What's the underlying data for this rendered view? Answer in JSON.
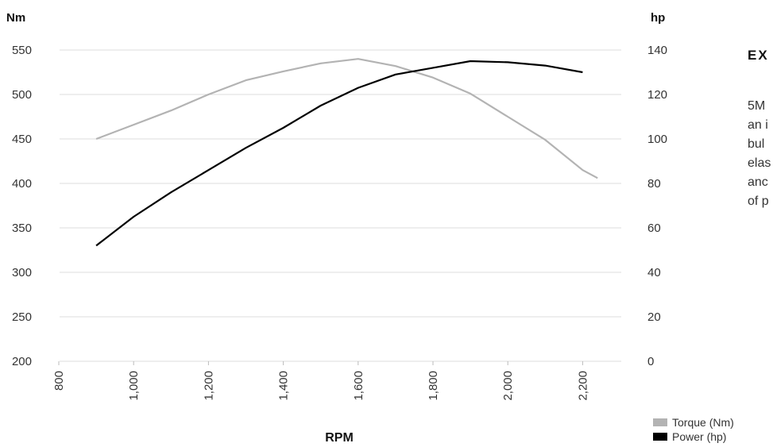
{
  "chart_data": {
    "type": "line",
    "xlabel": "RPM",
    "x_ticks": [
      "800",
      "1,000",
      "1,200",
      "1,400",
      "1,600",
      "1,800",
      "2,000",
      "2,200"
    ],
    "xlim": [
      800,
      2250
    ],
    "y_left": {
      "unit": "Nm",
      "ylim": [
        200,
        550
      ],
      "ticks": [
        "200",
        "250",
        "300",
        "350",
        "400",
        "450",
        "500",
        "550"
      ]
    },
    "y_right": {
      "unit": "hp",
      "ylim": [
        0,
        140
      ],
      "ticks": [
        "0",
        "20",
        "40",
        "60",
        "80",
        "100",
        "120",
        "140"
      ]
    },
    "grid": true,
    "legend_position": "bottom-right",
    "series": [
      {
        "name": "Torque (Nm)",
        "axis": "left",
        "color": "#b3b3b3",
        "x": [
          900,
          1000,
          1100,
          1200,
          1300,
          1400,
          1500,
          1600,
          1700,
          1800,
          1900,
          2000,
          2100,
          2200,
          2240
        ],
        "y": [
          450,
          466,
          482,
          500,
          516,
          526,
          535,
          540,
          532,
          519,
          501,
          475,
          449,
          415,
          406
        ]
      },
      {
        "name": "Power (hp)",
        "axis": "right",
        "color": "#000000",
        "x": [
          900,
          1000,
          1100,
          1200,
          1300,
          1400,
          1500,
          1600,
          1700,
          1800,
          1900,
          2000,
          2100,
          2200
        ],
        "y": [
          52,
          65,
          76,
          86,
          96,
          105,
          115,
          123,
          129,
          132,
          135,
          134.5,
          133,
          130
        ]
      }
    ]
  },
  "side_text": {
    "heading": "EX",
    "lines": [
      "5M",
      "an i",
      "bul",
      "elas",
      "anc",
      "of p"
    ]
  }
}
